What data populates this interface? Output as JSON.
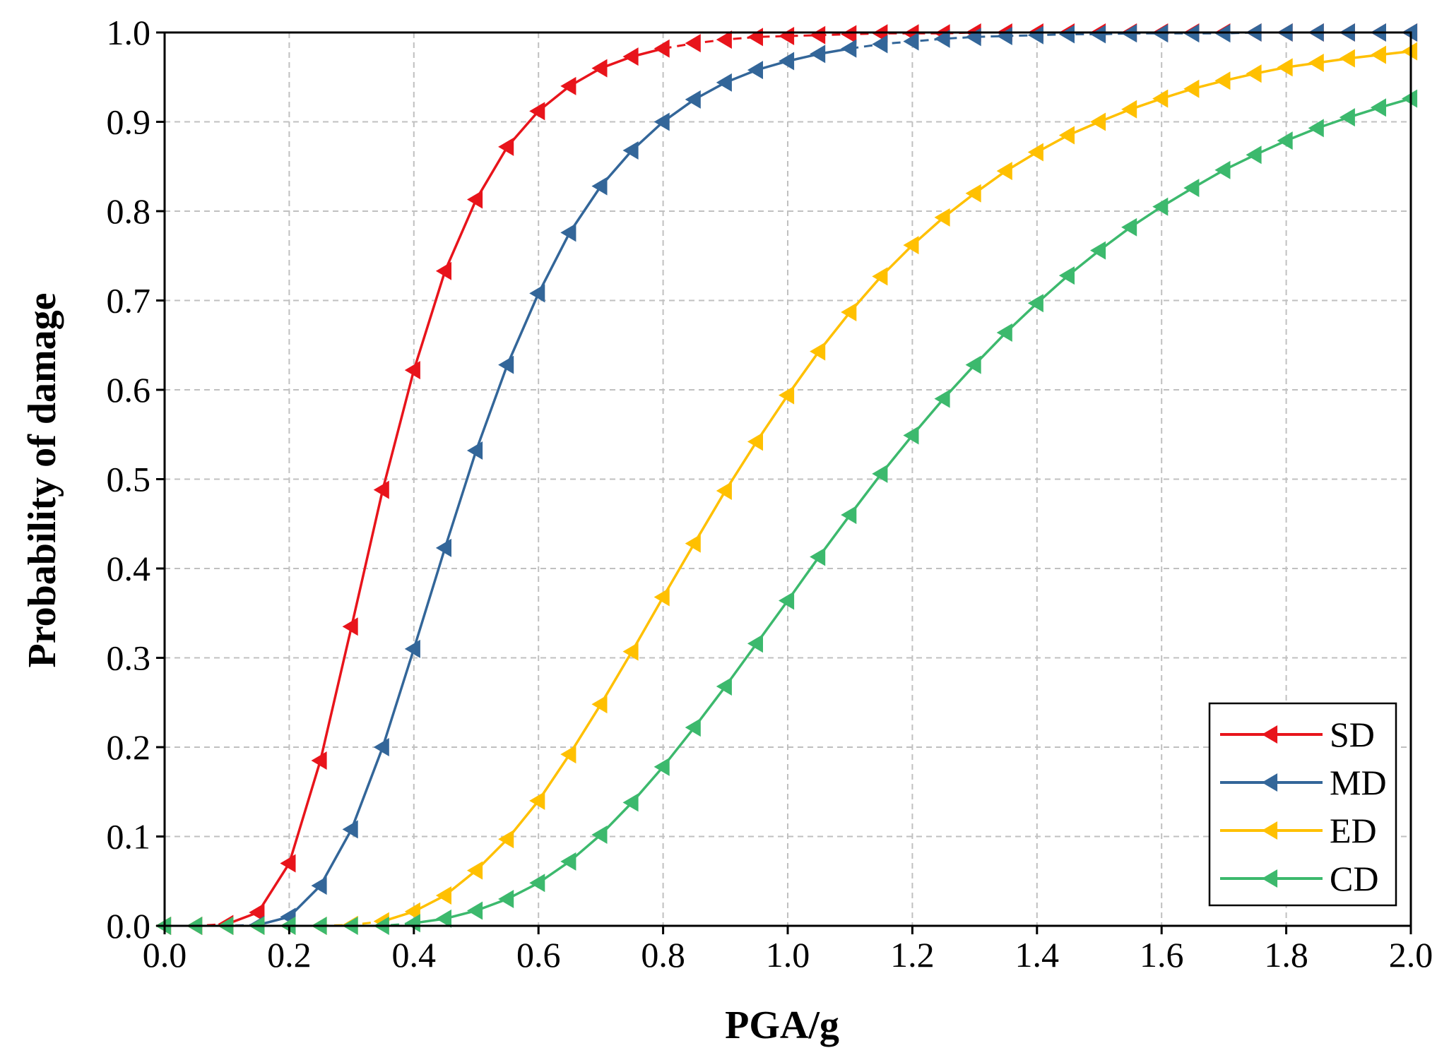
{
  "chart_data": {
    "type": "line",
    "xlabel": "PGA/g",
    "ylabel": "Probability of damage",
    "xlim": [
      0.0,
      2.0
    ],
    "ylim": [
      0.0,
      1.0
    ],
    "xticks": [
      "0.0",
      "0.2",
      "0.4",
      "0.6",
      "0.8",
      "1.0",
      "1.2",
      "1.4",
      "1.6",
      "1.8",
      "2.0"
    ],
    "yticks": [
      "0.0",
      "0.1",
      "0.2",
      "0.3",
      "0.4",
      "0.5",
      "0.6",
      "0.7",
      "0.8",
      "0.9",
      "1.0"
    ],
    "grid": true,
    "legend_position": "bottom-right",
    "x": [
      0.0,
      0.05,
      0.1,
      0.15,
      0.2,
      0.25,
      0.3,
      0.35,
      0.4,
      0.45,
      0.5,
      0.55,
      0.6,
      0.65,
      0.7,
      0.75,
      0.8,
      0.85,
      0.9,
      0.95,
      1.0,
      1.05,
      1.1,
      1.15,
      1.2,
      1.25,
      1.3,
      1.35,
      1.4,
      1.45,
      1.5,
      1.55,
      1.6,
      1.65,
      1.7,
      1.75,
      1.8,
      1.85,
      1.9,
      1.95,
      2.0
    ],
    "series": [
      {
        "name": "SD",
        "color": "#E8141B",
        "values": [
          0.0,
          0.0,
          0.002,
          0.015,
          0.07,
          0.185,
          0.335,
          0.488,
          0.622,
          0.733,
          0.813,
          0.872,
          0.912,
          0.94,
          0.96,
          0.973,
          0.982,
          0.988,
          0.992,
          0.995,
          0.996,
          0.997,
          0.998,
          0.999,
          0.999,
          0.999,
          1.0,
          1.0,
          1.0,
          1.0,
          1.0,
          1.0,
          1.0,
          1.0,
          1.0,
          1.0,
          1.0,
          1.0,
          1.0,
          1.0,
          1.0
        ]
      },
      {
        "name": "MD",
        "color": "#336699",
        "values": [
          0.0,
          0.0,
          0.0,
          0.001,
          0.01,
          0.045,
          0.108,
          0.2,
          0.31,
          0.423,
          0.532,
          0.628,
          0.708,
          0.776,
          0.828,
          0.868,
          0.9,
          0.925,
          0.944,
          0.958,
          0.968,
          0.976,
          0.982,
          0.987,
          0.99,
          0.993,
          0.995,
          0.996,
          0.997,
          0.998,
          0.998,
          0.999,
          0.999,
          0.999,
          0.999,
          1.0,
          1.0,
          1.0,
          1.0,
          1.0,
          1.0
        ]
      },
      {
        "name": "ED",
        "color": "#FFC000",
        "values": [
          0.0,
          0.0,
          0.0,
          0.0,
          0.0,
          0.0,
          0.001,
          0.005,
          0.016,
          0.034,
          0.062,
          0.097,
          0.14,
          0.192,
          0.248,
          0.307,
          0.368,
          0.428,
          0.487,
          0.542,
          0.594,
          0.643,
          0.687,
          0.727,
          0.762,
          0.793,
          0.82,
          0.845,
          0.866,
          0.885,
          0.9,
          0.914,
          0.926,
          0.937,
          0.946,
          0.954,
          0.961,
          0.966,
          0.971,
          0.975,
          0.979
        ]
      },
      {
        "name": "CD",
        "color": "#3CB96D",
        "values": [
          0.0,
          0.0,
          0.0,
          0.0,
          0.0,
          0.0,
          0.0,
          0.0,
          0.003,
          0.008,
          0.017,
          0.03,
          0.048,
          0.072,
          0.102,
          0.138,
          0.178,
          0.222,
          0.268,
          0.316,
          0.364,
          0.413,
          0.46,
          0.506,
          0.549,
          0.59,
          0.628,
          0.664,
          0.697,
          0.728,
          0.756,
          0.782,
          0.805,
          0.826,
          0.846,
          0.863,
          0.879,
          0.893,
          0.905,
          0.916,
          0.926
        ]
      }
    ]
  }
}
